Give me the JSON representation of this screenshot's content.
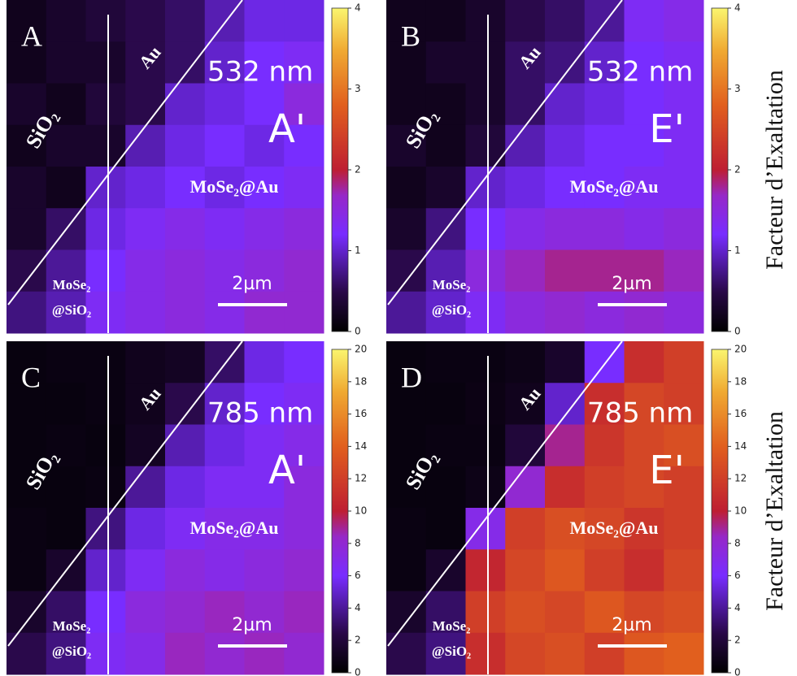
{
  "chart_data": [
    {
      "type": "heatmap",
      "panel": "A",
      "wavelength": "532 nm",
      "tip": "A'",
      "region_au": "Au",
      "region_sio2": "SiO₂",
      "region_main": "MoSe₂@Au",
      "region_bottom": [
        "MoSe₂",
        "@SiO₂"
      ],
      "scale": "2µm",
      "zlim": [
        0,
        4
      ],
      "zticks": [
        0,
        1,
        2,
        3,
        4
      ],
      "values": [
        [
          0.2,
          0.3,
          0.4,
          0.5,
          0.6,
          0.9,
          1.1,
          1.1
        ],
        [
          0.2,
          0.3,
          0.3,
          0.5,
          0.6,
          1.0,
          1.2,
          1.3
        ],
        [
          0.3,
          0.2,
          0.4,
          0.5,
          1.0,
          1.1,
          1.2,
          1.5
        ],
        [
          0.2,
          0.3,
          0.3,
          0.9,
          1.1,
          1.2,
          1.1,
          1.2
        ],
        [
          0.3,
          0.2,
          1.0,
          1.1,
          1.2,
          1.1,
          1.2,
          1.3
        ],
        [
          0.3,
          0.6,
          1.1,
          1.3,
          1.4,
          1.3,
          1.4,
          1.5
        ],
        [
          0.5,
          0.8,
          1.2,
          1.4,
          1.5,
          1.4,
          1.5,
          1.6
        ],
        [
          0.7,
          0.9,
          1.3,
          1.4,
          1.5,
          1.4,
          1.6,
          1.6
        ]
      ]
    },
    {
      "type": "heatmap",
      "panel": "B",
      "wavelength": "532 nm",
      "tip": "E'",
      "region_au": "Au",
      "region_sio2": "SiO₂",
      "region_main": "MoSe₂@Au",
      "region_bottom": [
        "MoSe₂",
        "@SiO₂"
      ],
      "scale": "2µm",
      "zlim": [
        0,
        4
      ],
      "zticks": [
        0,
        1,
        2,
        3,
        4
      ],
      "colorbar_label": "Facteur d’Exaltation",
      "values": [
        [
          0.2,
          0.2,
          0.3,
          0.5,
          0.6,
          0.8,
          1.3,
          1.4
        ],
        [
          0.2,
          0.3,
          0.3,
          0.6,
          0.7,
          1.0,
          1.2,
          1.3
        ],
        [
          0.2,
          0.2,
          0.3,
          0.6,
          1.0,
          1.1,
          1.2,
          1.3
        ],
        [
          0.3,
          0.2,
          0.4,
          0.9,
          1.1,
          1.2,
          1.2,
          1.3
        ],
        [
          0.2,
          0.3,
          1.0,
          1.1,
          1.2,
          1.2,
          1.3,
          1.3
        ],
        [
          0.3,
          0.7,
          1.2,
          1.4,
          1.5,
          1.5,
          1.4,
          1.5
        ],
        [
          0.5,
          0.9,
          1.5,
          1.7,
          1.8,
          1.8,
          1.8,
          1.7
        ],
        [
          0.8,
          1.0,
          1.3,
          1.5,
          1.6,
          1.5,
          1.6,
          1.5
        ]
      ]
    },
    {
      "type": "heatmap",
      "panel": "C",
      "wavelength": "785 nm",
      "tip": "A'",
      "region_au": "Au",
      "region_sio2": "SiO₂",
      "region_main": "MoSe₂@Au",
      "region_bottom": [
        "MoSe₂",
        "@SiO₂"
      ],
      "scale": "2µm",
      "zlim": [
        0,
        20
      ],
      "zticks": [
        0,
        2,
        4,
        6,
        8,
        10,
        12,
        14,
        16,
        18,
        20
      ],
      "values": [
        [
          0.5,
          0.6,
          0.6,
          1.0,
          1.2,
          3.0,
          5.5,
          6.0
        ],
        [
          0.5,
          0.5,
          0.6,
          1.0,
          2.5,
          5.0,
          6.0,
          6.5
        ],
        [
          0.5,
          0.6,
          0.5,
          1.2,
          4.5,
          5.5,
          6.5,
          7.0
        ],
        [
          0.5,
          0.5,
          0.6,
          4.0,
          5.5,
          6.5,
          6.5,
          7.5
        ],
        [
          0.6,
          0.5,
          3.5,
          5.5,
          6.5,
          7.0,
          7.0,
          7.5
        ],
        [
          0.6,
          1.5,
          5.0,
          6.5,
          7.5,
          7.0,
          7.5,
          8.0
        ],
        [
          1.5,
          3.0,
          6.0,
          7.5,
          8.0,
          8.5,
          8.0,
          8.5
        ],
        [
          2.5,
          3.5,
          6.5,
          7.0,
          8.5,
          8.0,
          8.5,
          8.0
        ]
      ]
    },
    {
      "type": "heatmap",
      "panel": "D",
      "wavelength": "785 nm",
      "tip": "E'",
      "region_au": "Au",
      "region_sio2": "SiO₂",
      "region_main": "MoSe₂@Au",
      "region_bottom": [
        "MoSe₂",
        "@SiO₂"
      ],
      "scale": "2µm",
      "zlim": [
        0,
        20
      ],
      "zticks": [
        0,
        2,
        4,
        6,
        8,
        10,
        12,
        14,
        16,
        18,
        20
      ],
      "colorbar_label": "Facteur d’Exaltation",
      "values": [
        [
          0.5,
          0.6,
          0.6,
          0.8,
          1.5,
          6.0,
          11.0,
          12.0
        ],
        [
          0.5,
          0.5,
          0.7,
          1.0,
          5.0,
          11.0,
          12.5,
          12.0
        ],
        [
          0.5,
          0.6,
          0.6,
          2.0,
          9.0,
          11.5,
          12.5,
          13.0
        ],
        [
          0.5,
          0.5,
          0.8,
          8.0,
          11.0,
          12.0,
          12.5,
          12.0
        ],
        [
          0.6,
          0.5,
          7.0,
          12.0,
          13.0,
          12.5,
          11.5,
          12.0
        ],
        [
          0.6,
          1.5,
          10.5,
          12.5,
          13.5,
          12.0,
          11.0,
          12.5
        ],
        [
          1.5,
          3.0,
          12.0,
          13.0,
          12.5,
          13.5,
          12.5,
          13.0
        ],
        [
          2.5,
          3.5,
          11.0,
          12.5,
          13.0,
          12.0,
          13.5,
          14.0
        ]
      ]
    }
  ]
}
